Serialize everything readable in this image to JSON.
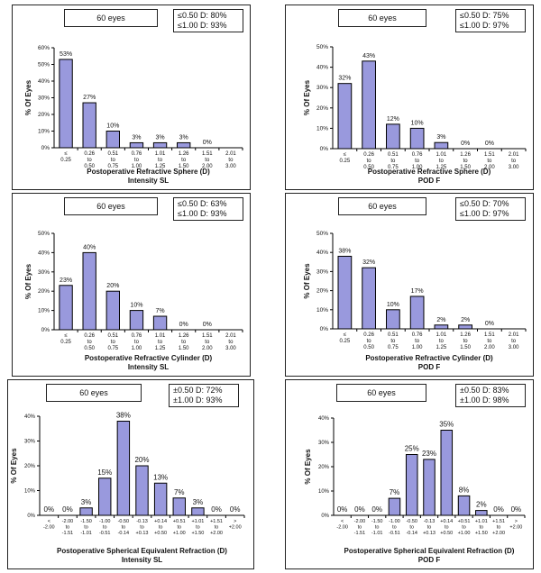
{
  "chart_data": [
    {
      "type": "bar",
      "eyes_label": "60 eyes",
      "stats": [
        "≤0.50 D: 80%",
        "≤1.00 D: 93%"
      ],
      "categories": [
        [
          "≤",
          "0.25"
        ],
        [
          "0.26",
          "to",
          "0.50"
        ],
        [
          "0.51",
          "to",
          "0.75"
        ],
        [
          "0.76",
          "to",
          "1.00"
        ],
        [
          "1.01",
          "to",
          "1.25"
        ],
        [
          "1.26",
          "to",
          "1.50"
        ],
        [
          "1.51",
          "to",
          "2.00"
        ],
        [
          "2.01",
          "to",
          "3.00"
        ]
      ],
      "values": [
        53,
        27,
        10,
        3,
        3,
        3,
        0,
        null
      ],
      "data_labels": [
        "53%",
        "27%",
        "10%",
        "3%",
        "3%",
        "3%",
        "0%",
        ""
      ],
      "yticks": [
        "0%",
        "10%",
        "20%",
        "30%",
        "40%",
        "50%",
        "60%"
      ],
      "ylim": [
        0,
        60
      ],
      "ylabel": "% Of Eyes",
      "xlabel": "Postoperative Refractive Sphere (D)",
      "subtitle": "Intensity SL"
    },
    {
      "type": "bar",
      "eyes_label": "60 eyes",
      "stats": [
        "≤0.50 D: 75%",
        "≤1.00 D: 97%"
      ],
      "categories": [
        [
          "≤",
          "0.25"
        ],
        [
          "0.26",
          "to",
          "0.50"
        ],
        [
          "0.51",
          "to",
          "0.75"
        ],
        [
          "0.76",
          "to",
          "1.00"
        ],
        [
          "1.01",
          "to",
          "1.25"
        ],
        [
          "1.26",
          "to",
          "1.50"
        ],
        [
          "1.51",
          "to",
          "2.00"
        ],
        [
          "2.01",
          "to",
          "3.00"
        ]
      ],
      "values": [
        32,
        43,
        12,
        10,
        3,
        0,
        0,
        null
      ],
      "data_labels": [
        "32%",
        "43%",
        "12%",
        "10%",
        "3%",
        "0%",
        "0%",
        ""
      ],
      "yticks": [
        "0%",
        "10%",
        "20%",
        "30%",
        "40%",
        "50%"
      ],
      "ylim": [
        0,
        50
      ],
      "ylabel": "% Of Eyes",
      "xlabel": "Postoperative Refractive Sphere (D)",
      "subtitle": "POD F"
    },
    {
      "type": "bar",
      "eyes_label": "60 eyes",
      "stats": [
        "≤0.50 D: 63%",
        "≤1.00 D: 93%"
      ],
      "categories": [
        [
          "≤",
          "0.25"
        ],
        [
          "0.26",
          "to",
          "0.50"
        ],
        [
          "0.51",
          "to",
          "0.75"
        ],
        [
          "0.76",
          "to",
          "1.00"
        ],
        [
          "1.01",
          "to",
          "1.25"
        ],
        [
          "1.26",
          "to",
          "1.50"
        ],
        [
          "1.51",
          "to",
          "2.00"
        ],
        [
          "2.01",
          "to",
          "3.00"
        ]
      ],
      "values": [
        23,
        40,
        20,
        10,
        7,
        0,
        0,
        null
      ],
      "data_labels": [
        "23%",
        "40%",
        "20%",
        "10%",
        "7%",
        "0%",
        "0%",
        ""
      ],
      "yticks": [
        "0%",
        "10%",
        "20%",
        "30%",
        "40%",
        "50%"
      ],
      "ylim": [
        0,
        50
      ],
      "ylabel": "% Of Eyes",
      "xlabel": "Postoperative Refractive Cylinder (D)",
      "subtitle": "Intensity SL"
    },
    {
      "type": "bar",
      "eyes_label": "60 eyes",
      "stats": [
        "≤0.50 D: 70%",
        "≤1.00 D: 97%"
      ],
      "categories": [
        [
          "≤",
          "0.25"
        ],
        [
          "0.26",
          "to",
          "0.50"
        ],
        [
          "0.51",
          "to",
          "0.75"
        ],
        [
          "0.76",
          "to",
          "1.00"
        ],
        [
          "1.01",
          "to",
          "1.25"
        ],
        [
          "1.26",
          "to",
          "1.50"
        ],
        [
          "1.51",
          "to",
          "2.00"
        ],
        [
          "2.01",
          "to",
          "3.00"
        ]
      ],
      "values": [
        38,
        32,
        10,
        17,
        2,
        2,
        0,
        null
      ],
      "data_labels": [
        "38%",
        "32%",
        "10%",
        "17%",
        "2%",
        "2%",
        "0%",
        ""
      ],
      "yticks": [
        "0%",
        "10%",
        "20%",
        "30%",
        "40%",
        "50%"
      ],
      "ylim": [
        0,
        50
      ],
      "ylabel": "% Of Eyes",
      "xlabel": "Postoperative Refractive Cylinder (D)",
      "subtitle": "POD F"
    },
    {
      "type": "bar",
      "eyes_label": "60 eyes",
      "stats": [
        "±0.50 D: 72%",
        "±1.00 D: 93%"
      ],
      "categories": [
        [
          "<",
          "-2.00"
        ],
        [
          "-2.00",
          "to",
          "-1.51"
        ],
        [
          "-1.50",
          "to",
          "-1.01"
        ],
        [
          "-1.00",
          "to",
          "-0.51"
        ],
        [
          "-0.50",
          "to",
          "-0.14"
        ],
        [
          "-0.13",
          "to",
          "+0.13"
        ],
        [
          "+0.14",
          "to",
          "+0.50"
        ],
        [
          "+0.51",
          "to",
          "+1.00"
        ],
        [
          "+1.01",
          "to",
          "+1.50"
        ],
        [
          "+1.51",
          "to",
          "+2.00"
        ],
        [
          ">",
          "+2.00"
        ]
      ],
      "values": [
        0,
        0,
        3,
        15,
        38,
        20,
        13,
        7,
        3,
        0,
        0
      ],
      "data_labels": [
        "0%",
        "0%",
        "3%",
        "15%",
        "38%",
        "20%",
        "13%",
        "7%",
        "3%",
        "0%",
        "0%"
      ],
      "yticks": [
        "0%",
        "10%",
        "20%",
        "30%",
        "40%"
      ],
      "ylim": [
        0,
        40
      ],
      "ylabel": "% Of Eyes",
      "xlabel": "Postoperative Spherical Equivalent Refraction (D)",
      "subtitle": "Intensity SL"
    },
    {
      "type": "bar",
      "eyes_label": "60 eyes",
      "stats": [
        "±0.50 D: 83%",
        "±1.00 D: 98%"
      ],
      "categories": [
        [
          "<",
          "-2.00"
        ],
        [
          "-2.00",
          "to",
          "-1.51"
        ],
        [
          "-1.50",
          "to",
          "-1.01"
        ],
        [
          "-1.00",
          "to",
          "-0.51"
        ],
        [
          "-0.50",
          "to",
          "-0.14"
        ],
        [
          "-0.13",
          "to",
          "+0.13"
        ],
        [
          "+0.14",
          "to",
          "+0.50"
        ],
        [
          "+0.51",
          "to",
          "+1.00"
        ],
        [
          "+1.01",
          "to",
          "+1.50"
        ],
        [
          "+1.51",
          "to",
          "+2.00"
        ],
        [
          ">",
          "+2.00"
        ]
      ],
      "values": [
        0,
        0,
        0,
        7,
        25,
        23,
        35,
        8,
        2,
        0,
        0
      ],
      "data_labels": [
        "0%",
        "0%",
        "0%",
        "7%",
        "25%",
        "23%",
        "35%",
        "8%",
        "2%",
        "0%",
        "0%"
      ],
      "yticks": [
        "0%",
        "10%",
        "20%",
        "30%",
        "40%"
      ],
      "ylim": [
        0,
        40
      ],
      "ylabel": "% Of Eyes",
      "xlabel": "Postoperative Spherical Equivalent Refraction (D)",
      "subtitle": "POD F"
    }
  ],
  "colors": {
    "bar_fill": "#9999dd",
    "bar_stroke": "#000000",
    "axis": "#000000"
  }
}
